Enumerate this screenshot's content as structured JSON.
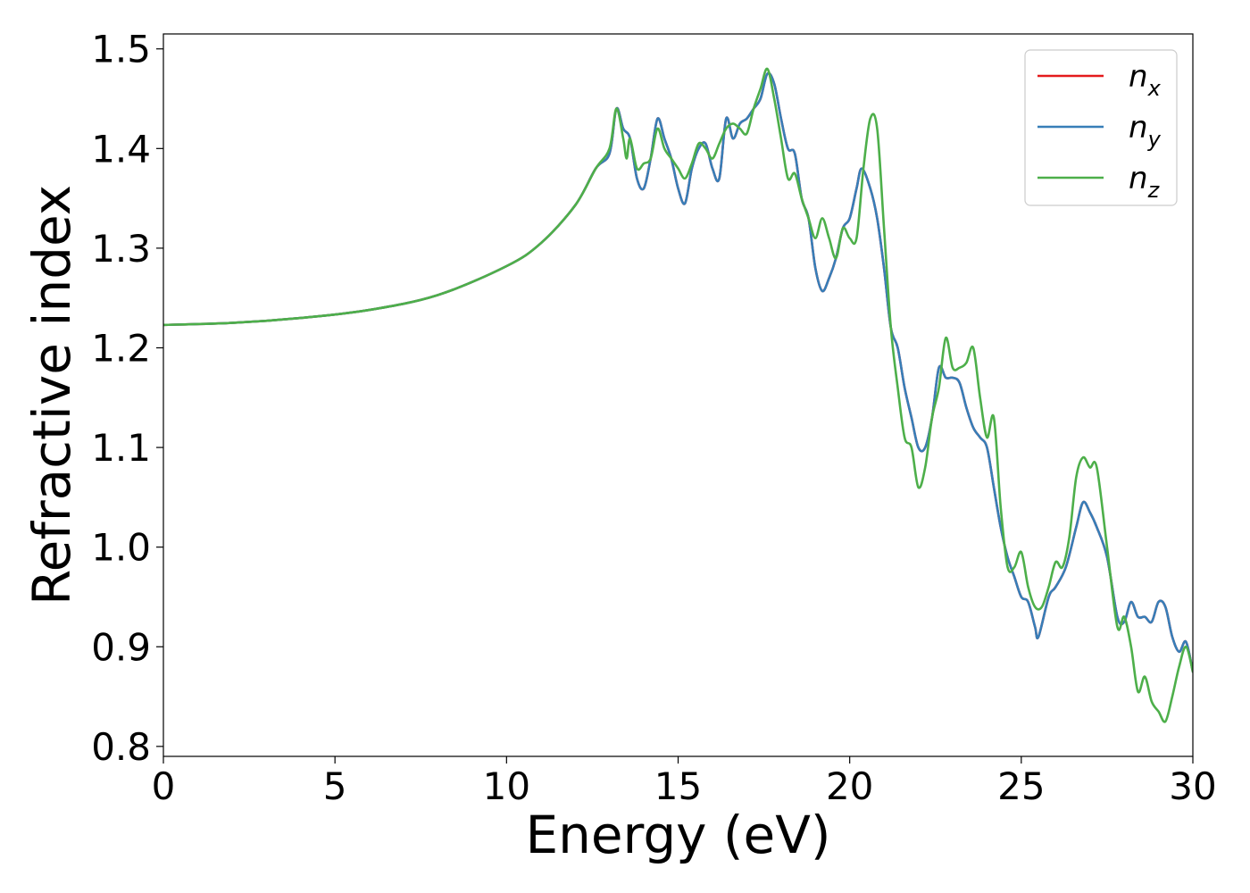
{
  "chart_data": {
    "type": "line",
    "title": "",
    "xlabel": "Energy (eV)",
    "ylabel": "Refractive index",
    "xlim": [
      0,
      30
    ],
    "ylim": [
      0.79,
      1.515
    ],
    "xticks": [
      0,
      5,
      10,
      15,
      20,
      25,
      30
    ],
    "xtick_labels": [
      "0",
      "5",
      "10",
      "15",
      "20",
      "25",
      "30"
    ],
    "yticks": [
      0.8,
      0.9,
      1.0,
      1.1,
      1.2,
      1.3,
      1.4,
      1.5
    ],
    "ytick_labels": [
      "0.8",
      "0.9",
      "1.0",
      "1.1",
      "1.2",
      "1.3",
      "1.4",
      "1.5"
    ],
    "grid": false,
    "legend_position": "top-right",
    "series": [
      {
        "name": "n_x",
        "label_base": "n",
        "label_sub": "x",
        "color": "#e41a1c",
        "points": [
          [
            0,
            1.223
          ],
          [
            2,
            1.225
          ],
          [
            4,
            1.23
          ],
          [
            6,
            1.238
          ],
          [
            8,
            1.253
          ],
          [
            10,
            1.282
          ],
          [
            11,
            1.305
          ],
          [
            12,
            1.343
          ],
          [
            12.6,
            1.38
          ],
          [
            13.0,
            1.395
          ],
          [
            13.2,
            1.44
          ],
          [
            13.4,
            1.42
          ],
          [
            13.6,
            1.41
          ],
          [
            13.8,
            1.37
          ],
          [
            14.0,
            1.36
          ],
          [
            14.2,
            1.39
          ],
          [
            14.4,
            1.43
          ],
          [
            14.6,
            1.41
          ],
          [
            14.8,
            1.39
          ],
          [
            15.0,
            1.36
          ],
          [
            15.2,
            1.345
          ],
          [
            15.4,
            1.38
          ],
          [
            15.6,
            1.4
          ],
          [
            15.8,
            1.405
          ],
          [
            16.0,
            1.38
          ],
          [
            16.2,
            1.37
          ],
          [
            16.4,
            1.43
          ],
          [
            16.6,
            1.41
          ],
          [
            16.8,
            1.425
          ],
          [
            17.0,
            1.43
          ],
          [
            17.2,
            1.44
          ],
          [
            17.4,
            1.45
          ],
          [
            17.6,
            1.475
          ],
          [
            17.8,
            1.465
          ],
          [
            18.0,
            1.43
          ],
          [
            18.2,
            1.4
          ],
          [
            18.4,
            1.395
          ],
          [
            18.6,
            1.35
          ],
          [
            18.8,
            1.33
          ],
          [
            19.0,
            1.28
          ],
          [
            19.2,
            1.257
          ],
          [
            19.4,
            1.27
          ],
          [
            19.6,
            1.29
          ],
          [
            19.8,
            1.32
          ],
          [
            20.0,
            1.33
          ],
          [
            20.2,
            1.36
          ],
          [
            20.35,
            1.38
          ],
          [
            20.6,
            1.36
          ],
          [
            20.8,
            1.33
          ],
          [
            21.0,
            1.28
          ],
          [
            21.2,
            1.22
          ],
          [
            21.4,
            1.2
          ],
          [
            21.6,
            1.16
          ],
          [
            21.8,
            1.13
          ],
          [
            22.0,
            1.1
          ],
          [
            22.2,
            1.1
          ],
          [
            22.4,
            1.13
          ],
          [
            22.6,
            1.18
          ],
          [
            22.8,
            1.17
          ],
          [
            23.0,
            1.17
          ],
          [
            23.2,
            1.165
          ],
          [
            23.4,
            1.14
          ],
          [
            23.6,
            1.12
          ],
          [
            23.8,
            1.11
          ],
          [
            24.0,
            1.1
          ],
          [
            24.2,
            1.06
          ],
          [
            24.4,
            1.02
          ],
          [
            24.6,
            0.99
          ],
          [
            24.8,
            0.97
          ],
          [
            25.0,
            0.95
          ],
          [
            25.2,
            0.945
          ],
          [
            25.4,
            0.92
          ],
          [
            25.5,
            0.91
          ],
          [
            25.8,
            0.95
          ],
          [
            26.0,
            0.96
          ],
          [
            26.3,
            0.98
          ],
          [
            26.6,
            1.02
          ],
          [
            26.8,
            1.045
          ],
          [
            27.0,
            1.035
          ],
          [
            27.2,
            1.02
          ],
          [
            27.5,
            0.99
          ],
          [
            27.8,
            0.93
          ],
          [
            28.0,
            0.925
          ],
          [
            28.2,
            0.945
          ],
          [
            28.4,
            0.93
          ],
          [
            28.6,
            0.93
          ],
          [
            28.8,
            0.925
          ],
          [
            29.0,
            0.945
          ],
          [
            29.2,
            0.94
          ],
          [
            29.4,
            0.91
          ],
          [
            29.6,
            0.895
          ],
          [
            29.8,
            0.905
          ],
          [
            30.0,
            0.875
          ]
        ]
      },
      {
        "name": "n_y",
        "label_base": "n",
        "label_sub": "y",
        "color": "#377eb8",
        "points": [
          [
            0,
            1.223
          ],
          [
            2,
            1.225
          ],
          [
            4,
            1.23
          ],
          [
            6,
            1.238
          ],
          [
            8,
            1.253
          ],
          [
            10,
            1.282
          ],
          [
            11,
            1.305
          ],
          [
            12,
            1.343
          ],
          [
            12.6,
            1.38
          ],
          [
            13.0,
            1.395
          ],
          [
            13.2,
            1.44
          ],
          [
            13.4,
            1.42
          ],
          [
            13.6,
            1.41
          ],
          [
            13.8,
            1.37
          ],
          [
            14.0,
            1.36
          ],
          [
            14.2,
            1.39
          ],
          [
            14.4,
            1.43
          ],
          [
            14.6,
            1.41
          ],
          [
            14.8,
            1.39
          ],
          [
            15.0,
            1.36
          ],
          [
            15.2,
            1.345
          ],
          [
            15.4,
            1.38
          ],
          [
            15.6,
            1.4
          ],
          [
            15.8,
            1.405
          ],
          [
            16.0,
            1.38
          ],
          [
            16.2,
            1.37
          ],
          [
            16.4,
            1.43
          ],
          [
            16.6,
            1.41
          ],
          [
            16.8,
            1.425
          ],
          [
            17.0,
            1.43
          ],
          [
            17.2,
            1.44
          ],
          [
            17.4,
            1.45
          ],
          [
            17.6,
            1.475
          ],
          [
            17.8,
            1.465
          ],
          [
            18.0,
            1.43
          ],
          [
            18.2,
            1.4
          ],
          [
            18.4,
            1.395
          ],
          [
            18.6,
            1.35
          ],
          [
            18.8,
            1.33
          ],
          [
            19.0,
            1.28
          ],
          [
            19.2,
            1.257
          ],
          [
            19.4,
            1.27
          ],
          [
            19.6,
            1.29
          ],
          [
            19.8,
            1.32
          ],
          [
            20.0,
            1.33
          ],
          [
            20.2,
            1.36
          ],
          [
            20.35,
            1.38
          ],
          [
            20.6,
            1.36
          ],
          [
            20.8,
            1.33
          ],
          [
            21.0,
            1.28
          ],
          [
            21.2,
            1.22
          ],
          [
            21.4,
            1.2
          ],
          [
            21.6,
            1.16
          ],
          [
            21.8,
            1.13
          ],
          [
            22.0,
            1.1
          ],
          [
            22.2,
            1.1
          ],
          [
            22.4,
            1.13
          ],
          [
            22.6,
            1.18
          ],
          [
            22.8,
            1.17
          ],
          [
            23.0,
            1.17
          ],
          [
            23.2,
            1.165
          ],
          [
            23.4,
            1.14
          ],
          [
            23.6,
            1.12
          ],
          [
            23.8,
            1.11
          ],
          [
            24.0,
            1.1
          ],
          [
            24.2,
            1.06
          ],
          [
            24.4,
            1.02
          ],
          [
            24.6,
            0.99
          ],
          [
            24.8,
            0.97
          ],
          [
            25.0,
            0.95
          ],
          [
            25.2,
            0.945
          ],
          [
            25.4,
            0.92
          ],
          [
            25.5,
            0.91
          ],
          [
            25.8,
            0.95
          ],
          [
            26.0,
            0.96
          ],
          [
            26.3,
            0.98
          ],
          [
            26.6,
            1.02
          ],
          [
            26.8,
            1.045
          ],
          [
            27.0,
            1.035
          ],
          [
            27.2,
            1.02
          ],
          [
            27.5,
            0.99
          ],
          [
            27.8,
            0.93
          ],
          [
            28.0,
            0.925
          ],
          [
            28.2,
            0.945
          ],
          [
            28.4,
            0.93
          ],
          [
            28.6,
            0.93
          ],
          [
            28.8,
            0.925
          ],
          [
            29.0,
            0.945
          ],
          [
            29.2,
            0.94
          ],
          [
            29.4,
            0.91
          ],
          [
            29.6,
            0.895
          ],
          [
            29.8,
            0.905
          ],
          [
            30.0,
            0.875
          ]
        ]
      },
      {
        "name": "n_z",
        "label_base": "n",
        "label_sub": "z",
        "color": "#4daf4a",
        "points": [
          [
            0,
            1.223
          ],
          [
            2,
            1.225
          ],
          [
            4,
            1.23
          ],
          [
            6,
            1.238
          ],
          [
            8,
            1.253
          ],
          [
            10,
            1.282
          ],
          [
            11,
            1.305
          ],
          [
            12,
            1.343
          ],
          [
            12.6,
            1.38
          ],
          [
            13.0,
            1.4
          ],
          [
            13.2,
            1.44
          ],
          [
            13.4,
            1.41
          ],
          [
            13.5,
            1.39
          ],
          [
            13.6,
            1.41
          ],
          [
            13.8,
            1.38
          ],
          [
            14.0,
            1.385
          ],
          [
            14.2,
            1.39
          ],
          [
            14.4,
            1.42
          ],
          [
            14.6,
            1.4
          ],
          [
            14.8,
            1.39
          ],
          [
            15.0,
            1.38
          ],
          [
            15.2,
            1.37
          ],
          [
            15.4,
            1.385
          ],
          [
            15.6,
            1.405
          ],
          [
            15.8,
            1.4
          ],
          [
            16.0,
            1.39
          ],
          [
            16.2,
            1.405
          ],
          [
            16.4,
            1.42
          ],
          [
            16.6,
            1.425
          ],
          [
            16.8,
            1.42
          ],
          [
            17.0,
            1.415
          ],
          [
            17.2,
            1.44
          ],
          [
            17.4,
            1.46
          ],
          [
            17.6,
            1.48
          ],
          [
            17.8,
            1.45
          ],
          [
            18.0,
            1.41
          ],
          [
            18.2,
            1.37
          ],
          [
            18.4,
            1.375
          ],
          [
            18.6,
            1.35
          ],
          [
            18.8,
            1.33
          ],
          [
            19.0,
            1.31
          ],
          [
            19.2,
            1.33
          ],
          [
            19.4,
            1.31
          ],
          [
            19.6,
            1.29
          ],
          [
            19.8,
            1.32
          ],
          [
            20.0,
            1.31
          ],
          [
            20.2,
            1.31
          ],
          [
            20.4,
            1.38
          ],
          [
            20.6,
            1.43
          ],
          [
            20.8,
            1.42
          ],
          [
            21.0,
            1.32
          ],
          [
            21.2,
            1.22
          ],
          [
            21.4,
            1.16
          ],
          [
            21.6,
            1.11
          ],
          [
            21.8,
            1.1
          ],
          [
            22.0,
            1.06
          ],
          [
            22.2,
            1.08
          ],
          [
            22.4,
            1.13
          ],
          [
            22.6,
            1.16
          ],
          [
            22.8,
            1.21
          ],
          [
            23.0,
            1.18
          ],
          [
            23.2,
            1.18
          ],
          [
            23.4,
            1.185
          ],
          [
            23.6,
            1.2
          ],
          [
            23.8,
            1.15
          ],
          [
            24.0,
            1.11
          ],
          [
            24.2,
            1.13
          ],
          [
            24.4,
            1.04
          ],
          [
            24.6,
            0.98
          ],
          [
            24.8,
            0.98
          ],
          [
            25.0,
            0.995
          ],
          [
            25.2,
            0.96
          ],
          [
            25.4,
            0.94
          ],
          [
            25.6,
            0.94
          ],
          [
            25.8,
            0.96
          ],
          [
            26.0,
            0.985
          ],
          [
            26.2,
            0.98
          ],
          [
            26.4,
            1.01
          ],
          [
            26.6,
            1.07
          ],
          [
            26.8,
            1.09
          ],
          [
            27.0,
            1.08
          ],
          [
            27.2,
            1.08
          ],
          [
            27.5,
            1.0
          ],
          [
            27.8,
            0.92
          ],
          [
            28.0,
            0.93
          ],
          [
            28.2,
            0.9
          ],
          [
            28.4,
            0.855
          ],
          [
            28.6,
            0.87
          ],
          [
            28.8,
            0.845
          ],
          [
            29.0,
            0.835
          ],
          [
            29.2,
            0.825
          ],
          [
            29.4,
            0.85
          ],
          [
            29.6,
            0.88
          ],
          [
            29.8,
            0.9
          ],
          [
            30.0,
            0.875
          ]
        ]
      }
    ]
  }
}
